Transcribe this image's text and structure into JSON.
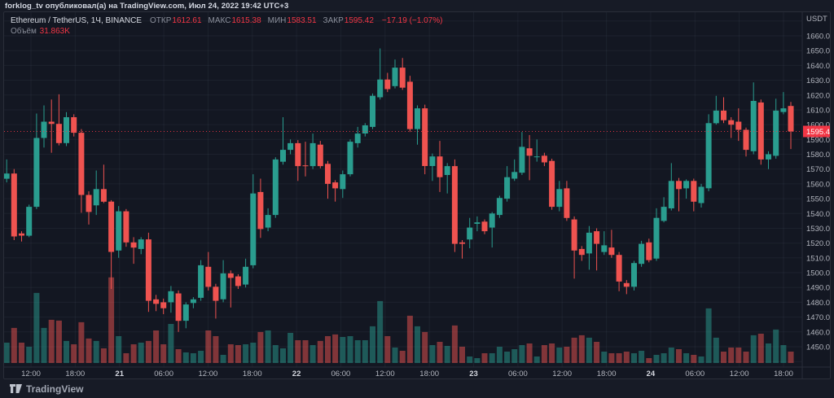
{
  "header": {
    "published_line": "forklog_tv опубликовал(а) на TradingView.com, Июл 24, 2022 19:42 UTC+3"
  },
  "legend": {
    "symbol": "Ethereum / TetherUS, 1Ч, BINANCE",
    "fields": [
      {
        "label": "ОТКР",
        "value": "1612.61"
      },
      {
        "label": "МАКС",
        "value": "1615.38"
      },
      {
        "label": "МИН",
        "value": "1583.51"
      },
      {
        "label": "ЗАКР",
        "value": "1595.42"
      }
    ],
    "change": "−17.19 (−1.07%)",
    "volume_label": "Объём",
    "volume_value": "31.863K"
  },
  "axis": {
    "currency": "USDT",
    "price_ticks": [
      "1660.00",
      "1650.00",
      "1640.00",
      "1630.00",
      "1620.00",
      "1610.00",
      "1600.00",
      "1590.00",
      "1580.00",
      "1570.00",
      "1560.00",
      "1550.00",
      "1540.00",
      "1530.00",
      "1520.00",
      "1510.00",
      "1500.00",
      "1490.00",
      "1480.00",
      "1470.00",
      "1460.00",
      "1450.00"
    ],
    "time_labels": [
      {
        "text": "12:00",
        "day": false
      },
      {
        "text": "18:00",
        "day": false
      },
      {
        "text": "21",
        "day": true
      },
      {
        "text": "06:00",
        "day": false
      },
      {
        "text": "12:00",
        "day": false
      },
      {
        "text": "18:00",
        "day": false
      },
      {
        "text": "22",
        "day": true
      },
      {
        "text": "06:00",
        "day": false
      },
      {
        "text": "12:00",
        "day": false
      },
      {
        "text": "18:00",
        "day": false
      },
      {
        "text": "23",
        "day": true
      },
      {
        "text": "06:00",
        "day": false
      },
      {
        "text": "12:00",
        "day": false
      },
      {
        "text": "18:00",
        "day": false
      },
      {
        "text": "24",
        "day": true
      },
      {
        "text": "06:00",
        "day": false
      },
      {
        "text": "12:00",
        "day": false
      },
      {
        "text": "18:00",
        "day": false
      }
    ],
    "last_price_label": "1595.42"
  },
  "footer": {
    "brand": "TradingView"
  },
  "colors": {
    "up": "#2a9d8f",
    "down": "#ef5350",
    "accent_red": "#f23645",
    "bg": "#131722",
    "grid": "rgba(160,172,196,0.07)",
    "axis_text": "#b2b5be",
    "day_text": "#d5d8e0",
    "separator": "#2a2e39"
  },
  "chart_data": {
    "type": "candlestick",
    "title": "Ethereum / TetherUS, 1Ч, BINANCE",
    "interval": "1H",
    "quote": "USDT",
    "ylim": [
      1440,
      1675
    ],
    "grid": true,
    "current": {
      "open": 1612.61,
      "high": 1615.38,
      "low": 1583.51,
      "close": 1595.42,
      "change": -17.19,
      "change_pct": -1.07,
      "volume_k": 31.863
    },
    "ohlc": [
      [
        1563,
        1576.5,
        1561,
        1569
      ],
      [
        1563.5,
        1576.5,
        1561,
        1567
      ],
      [
        1567,
        1570,
        1522,
        1524.5
      ],
      [
        1526.5,
        1528,
        1521,
        1525
      ],
      [
        1525,
        1546,
        1524,
        1544.5
      ],
      [
        1544.5,
        1607.5,
        1543,
        1591
      ],
      [
        1591,
        1613,
        1584.5,
        1602
      ],
      [
        1602,
        1617,
        1581,
        1600.5
      ],
      [
        1600.5,
        1620.5,
        1586,
        1587.5
      ],
      [
        1587.5,
        1608.5,
        1585.5,
        1605
      ],
      [
        1605,
        1607,
        1592,
        1594.5
      ],
      [
        1594.5,
        1597,
        1540.5,
        1552.5
      ],
      [
        1552.5,
        1555,
        1532.5,
        1541
      ],
      [
        1545.5,
        1569,
        1539,
        1556.5
      ],
      [
        1556.5,
        1573,
        1547,
        1548
      ],
      [
        1548,
        1549,
        1489,
        1514
      ],
      [
        1515,
        1545,
        1510,
        1541.5
      ],
      [
        1541.5,
        1543,
        1517.5,
        1520.5
      ],
      [
        1520.5,
        1524,
        1506,
        1517
      ],
      [
        1516,
        1524,
        1512.5,
        1522.5
      ],
      [
        1522.5,
        1527,
        1473.5,
        1481
      ],
      [
        1482,
        1485,
        1474,
        1479
      ],
      [
        1480,
        1482.5,
        1472,
        1476
      ],
      [
        1480,
        1491,
        1473,
        1487.5
      ],
      [
        1486,
        1488,
        1460,
        1467.5
      ],
      [
        1467.5,
        1480,
        1462.5,
        1478.5
      ],
      [
        1479.5,
        1483.5,
        1476,
        1482
      ],
      [
        1483,
        1508.5,
        1481,
        1505
      ],
      [
        1504,
        1514,
        1488,
        1490.5
      ],
      [
        1490.5,
        1492.5,
        1469,
        1481
      ],
      [
        1482,
        1508.5,
        1480,
        1499.5
      ],
      [
        1499.5,
        1501.5,
        1476.5,
        1496.5
      ],
      [
        1497.5,
        1499,
        1489,
        1491
      ],
      [
        1492,
        1509.5,
        1490,
        1504
      ],
      [
        1505,
        1566.5,
        1503,
        1553.5
      ],
      [
        1554.5,
        1563.5,
        1523.5,
        1529.5
      ],
      [
        1530.5,
        1543.5,
        1528,
        1539
      ],
      [
        1539,
        1578,
        1537,
        1576.5
      ],
      [
        1575,
        1605,
        1573,
        1583
      ],
      [
        1583,
        1590,
        1580,
        1587.5
      ],
      [
        1587.5,
        1589.5,
        1562,
        1572
      ],
      [
        1572.5,
        1588.5,
        1565,
        1572
      ],
      [
        1572,
        1594,
        1570,
        1587.5
      ],
      [
        1586.5,
        1589,
        1570.5,
        1572
      ],
      [
        1573.5,
        1575.5,
        1550,
        1560
      ],
      [
        1561,
        1562.5,
        1548,
        1557
      ],
      [
        1556.5,
        1569,
        1550.5,
        1566.5
      ],
      [
        1566.5,
        1590,
        1565,
        1588.5
      ],
      [
        1587.5,
        1598.5,
        1584.5,
        1594
      ],
      [
        1594,
        1601,
        1592,
        1599.5
      ],
      [
        1598.5,
        1621,
        1597,
        1619.5
      ],
      [
        1618.5,
        1651.5,
        1617,
        1630.5
      ],
      [
        1630.5,
        1635,
        1622,
        1624
      ],
      [
        1626,
        1644,
        1624.5,
        1638.5
      ],
      [
        1638.5,
        1645,
        1623.5,
        1625
      ],
      [
        1629,
        1633,
        1595,
        1597
      ],
      [
        1597,
        1613,
        1586.5,
        1611
      ],
      [
        1611,
        1613.5,
        1566.5,
        1572
      ],
      [
        1572,
        1580.5,
        1562,
        1578.5
      ],
      [
        1578.5,
        1589,
        1554.5,
        1564.5
      ],
      [
        1566,
        1574,
        1553.5,
        1572
      ],
      [
        1572,
        1576.5,
        1514,
        1519.5
      ],
      [
        1520.5,
        1522,
        1509.5,
        1519.5
      ],
      [
        1522.5,
        1537,
        1516.5,
        1530.5
      ],
      [
        1533,
        1538,
        1528,
        1534
      ],
      [
        1534.5,
        1536,
        1526,
        1528
      ],
      [
        1530.5,
        1541,
        1517,
        1540
      ],
      [
        1539,
        1552,
        1537,
        1550.5
      ],
      [
        1550,
        1572,
        1548,
        1564.5
      ],
      [
        1563.5,
        1576.5,
        1562,
        1568
      ],
      [
        1567.5,
        1595,
        1566,
        1585
      ],
      [
        1584,
        1593,
        1562.5,
        1579
      ],
      [
        1578,
        1590,
        1575,
        1578.5
      ],
      [
        1579,
        1581,
        1572,
        1574.5
      ],
      [
        1575.5,
        1577,
        1542.5,
        1544.5
      ],
      [
        1544.5,
        1562,
        1541.5,
        1556.5
      ],
      [
        1557,
        1562,
        1535,
        1537
      ],
      [
        1536,
        1538,
        1496,
        1515
      ],
      [
        1516,
        1518,
        1508,
        1512
      ],
      [
        1513,
        1531.5,
        1502,
        1527
      ],
      [
        1528,
        1530,
        1501.5,
        1519.5
      ],
      [
        1514,
        1528,
        1512,
        1518.5
      ],
      [
        1517,
        1529,
        1510,
        1512
      ],
      [
        1512,
        1514,
        1487.5,
        1494
      ],
      [
        1493,
        1495,
        1485.5,
        1490.5
      ],
      [
        1490.5,
        1508,
        1488,
        1506.5
      ],
      [
        1506,
        1521.5,
        1504,
        1519.5
      ],
      [
        1520.5,
        1523,
        1507,
        1508.5
      ],
      [
        1509.5,
        1543.5,
        1508,
        1537
      ],
      [
        1535,
        1551,
        1534,
        1544.5
      ],
      [
        1543.5,
        1574,
        1542,
        1562
      ],
      [
        1562,
        1564,
        1541.5,
        1556.5
      ],
      [
        1557,
        1563,
        1550,
        1562
      ],
      [
        1562,
        1563.5,
        1541.5,
        1548
      ],
      [
        1547,
        1560,
        1544,
        1558
      ],
      [
        1557,
        1607,
        1555,
        1601
      ],
      [
        1601,
        1619.5,
        1600,
        1609.5
      ],
      [
        1609.5,
        1618.5,
        1601,
        1603
      ],
      [
        1603,
        1605,
        1591,
        1600
      ],
      [
        1602,
        1611,
        1589,
        1596.5
      ],
      [
        1596.5,
        1598,
        1578.5,
        1583
      ],
      [
        1582,
        1628.5,
        1580,
        1616
      ],
      [
        1615,
        1617,
        1573,
        1576.5
      ],
      [
        1576.5,
        1582,
        1570,
        1580
      ],
      [
        1579,
        1617.5,
        1577,
        1609.5
      ],
      [
        1608.5,
        1622,
        1607,
        1611
      ],
      [
        1612.61,
        1615.38,
        1583.51,
        1595.42
      ]
    ],
    "volumes_k": [
      56.9,
      56.9,
      97.9,
      56.9,
      45.5,
      195.7,
      97.9,
      120.6,
      118.4,
      61.5,
      52.3,
      113.8,
      68.3,
      61.5,
      41.0,
      239.0,
      75.1,
      27.3,
      52.3,
      56.9,
      61.5,
      91.0,
      52.3,
      109.2,
      38.7,
      29.6,
      27.3,
      34.1,
      91.0,
      75.1,
      22.8,
      52.3,
      50.1,
      52.3,
      56.9,
      86.5,
      91.0,
      50.1,
      41.0,
      84.2,
      63.7,
      63.7,
      50.1,
      61.5,
      75.1,
      79.7,
      72.8,
      75.1,
      63.7,
      63.7,
      102.4,
      173.0,
      75.1,
      43.2,
      34.1,
      132.0,
      102.4,
      86.5,
      50.1,
      59.2,
      47.8,
      104.7,
      45.5,
      18.2,
      13.7,
      27.3,
      27.3,
      45.5,
      31.9,
      38.7,
      50.1,
      54.6,
      18.2,
      50.1,
      54.6,
      43.2,
      45.5,
      70.6,
      77.4,
      70.6,
      59.2,
      31.9,
      27.3,
      27.3,
      31.9,
      27.3,
      34.1,
      13.7,
      22.8,
      27.3,
      43.2,
      38.7,
      27.3,
      22.8,
      18.2,
      152.5,
      70.6,
      31.9,
      43.2,
      43.2,
      31.9,
      77.4,
      81.9,
      54.6,
      93.3,
      50.1,
      31.9
    ]
  }
}
